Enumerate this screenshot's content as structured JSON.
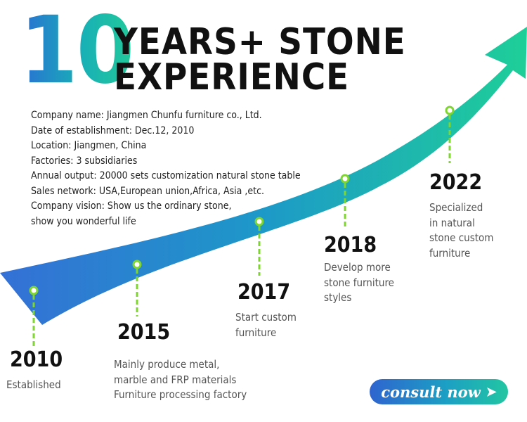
{
  "header": {
    "big_number": "10",
    "title_line1": "YEARS+ STONE",
    "title_line2": "EXPERIENCE"
  },
  "company_info": [
    "Company name: Jiangmen Chunfu furniture co., Ltd.",
    "Date of establishment: Dec.12, 2010",
    "Location: Jiangmen, China",
    "Factories: 3 subsidiaries",
    "Annual output: 20000 sets customization natural stone table",
    "Sales network: USA,European union,Africa, Asia ,etc.",
    "Company vision: Show us the ordinary stone,",
    "show you wonderful life"
  ],
  "timeline": [
    {
      "year": "2010",
      "lines": [
        "Established"
      ]
    },
    {
      "year": "2015",
      "lines": [
        "Mainly produce metal,",
        "marble and FRP materials",
        "Furniture processing factory"
      ]
    },
    {
      "year": "2017",
      "lines": [
        "Start custom",
        "furniture"
      ]
    },
    {
      "year": "2018",
      "lines": [
        "Develop more",
        "stone furniture",
        "styles"
      ]
    },
    {
      "year": "2022",
      "lines": [
        "Specialized",
        "in natural",
        "stone custom",
        "furniture"
      ]
    }
  ],
  "cta": {
    "label": "consult now",
    "arrow": "➤"
  },
  "colors": {
    "arrow_start": "#3470d6",
    "arrow_end": "#1ecf98",
    "marker_dash": "#7fd531"
  }
}
